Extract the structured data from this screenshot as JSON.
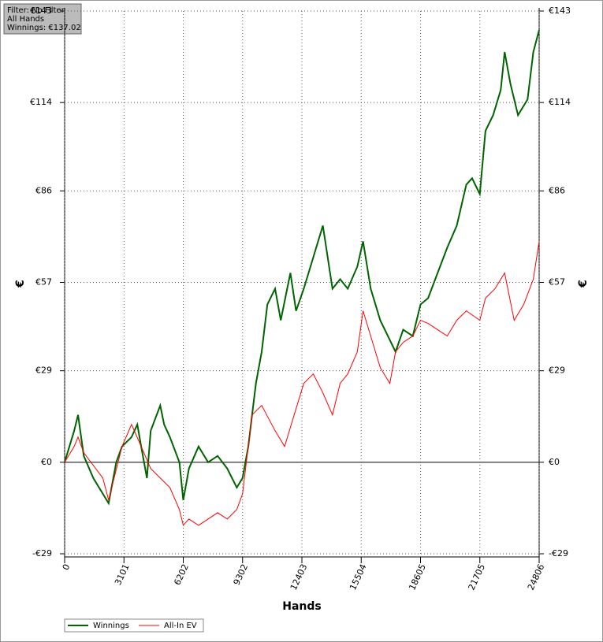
{
  "chart_data": {
    "type": "line",
    "info": [
      "Filter: No Filter",
      "All Hands",
      "Winnings: €137.02"
    ],
    "xlabel": "Hands",
    "ylabel": "€",
    "y2label": "€",
    "xlim": [
      0,
      24806
    ],
    "ylim": [
      -29,
      143
    ],
    "xticks": [
      0,
      3101,
      6202,
      9302,
      12403,
      15504,
      18605,
      21705,
      24806
    ],
    "yticks": [
      {
        "value": -29,
        "label": "-€29"
      },
      {
        "value": 0,
        "label": "€0"
      },
      {
        "value": 29,
        "label": "€29"
      },
      {
        "value": 57,
        "label": "€57"
      },
      {
        "value": 86,
        "label": "€86"
      },
      {
        "value": 114,
        "label": "€114"
      },
      {
        "value": 143,
        "label": "€143"
      }
    ],
    "grid": true,
    "series": [
      {
        "name": "Winnings",
        "color": "#006400",
        "x": [
          0,
          500,
          700,
          1000,
          1500,
          2000,
          2300,
          2700,
          3000,
          3500,
          3800,
          4000,
          4300,
          4500,
          5000,
          5200,
          5500,
          6000,
          6202,
          6500,
          7000,
          7500,
          8000,
          8500,
          9000,
          9302,
          9600,
          9800,
          10000,
          10300,
          10600,
          11000,
          11300,
          11800,
          12100,
          12500,
          13000,
          13500,
          14000,
          14400,
          14800,
          15300,
          15600,
          16000,
          16500,
          16900,
          17300,
          17700,
          18200,
          18605,
          19000,
          19500,
          20000,
          20500,
          21000,
          21300,
          21705,
          22000,
          22400,
          22800,
          23000,
          23300,
          23700,
          24200,
          24500,
          24806
        ],
        "values": [
          0,
          10,
          15,
          2,
          -5,
          -10,
          -13,
          0,
          5,
          8,
          12,
          5,
          -5,
          10,
          18,
          12,
          8,
          0,
          -12,
          -2,
          5,
          0,
          2,
          -2,
          -8,
          -5,
          5,
          15,
          25,
          35,
          50,
          55,
          45,
          60,
          48,
          55,
          65,
          75,
          55,
          58,
          55,
          62,
          70,
          55,
          45,
          40,
          35,
          42,
          40,
          50,
          52,
          60,
          68,
          75,
          88,
          90,
          85,
          105,
          110,
          118,
          130,
          120,
          110,
          115,
          130,
          137
        ]
      },
      {
        "name": "All-In EV",
        "color": "#ff0000",
        "x": [
          0,
          500,
          700,
          1000,
          2000,
          2300,
          3000,
          3500,
          4000,
          4500,
          5000,
          5500,
          6000,
          6202,
          6500,
          7000,
          7500,
          8000,
          8500,
          9000,
          9302,
          9800,
          10300,
          11000,
          11500,
          12000,
          12500,
          13000,
          13500,
          14000,
          14400,
          14800,
          15300,
          15600,
          16000,
          16500,
          17000,
          17300,
          17700,
          18200,
          18605,
          19000,
          19500,
          20000,
          20500,
          21000,
          21705,
          22000,
          22500,
          23000,
          23500,
          24000,
          24500,
          24806
        ],
        "values": [
          0,
          5,
          8,
          3,
          -5,
          -12,
          5,
          12,
          5,
          -2,
          -5,
          -8,
          -15,
          -20,
          -18,
          -20,
          -18,
          -16,
          -18,
          -15,
          -10,
          15,
          18,
          10,
          5,
          15,
          25,
          28,
          22,
          15,
          25,
          28,
          35,
          48,
          40,
          30,
          25,
          35,
          38,
          40,
          45,
          44,
          42,
          40,
          45,
          48,
          45,
          52,
          55,
          60,
          45,
          50,
          58,
          70
        ]
      }
    ]
  }
}
